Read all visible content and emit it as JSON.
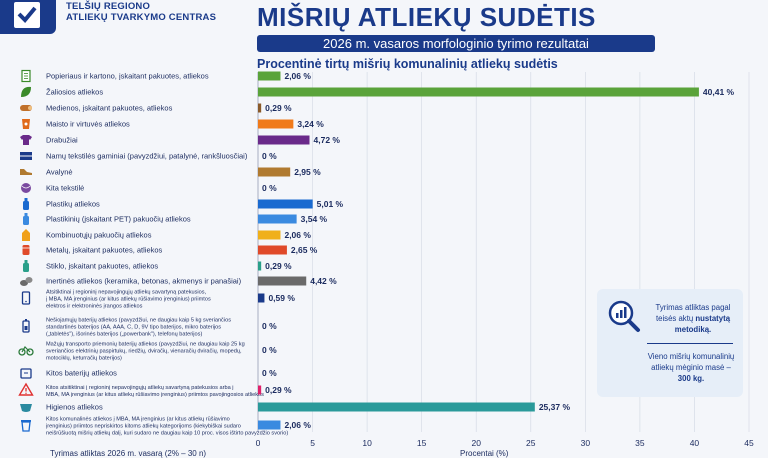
{
  "header": {
    "org_line1": "TELŠIŲ REGIONO",
    "org_line2": "ATLIEKŲ TVARKYMO CENTRAS",
    "title": "MIŠRIŲ ATLIEKŲ SUDĖTIS",
    "subtitle": "2026 m. vasaros morfologinio tyrimo rezultatai"
  },
  "info_box": {
    "text1_a": "Tyrimas atliktas pagal",
    "text1_b": "teisės aktų",
    "text1_c": "nustatytą",
    "text1_d": "metodiką.",
    "text2_a": "Vieno mišrių komunalinių",
    "text2_b": "atliekų mėginio masė –",
    "text2_c": "300 kg."
  },
  "footer": {
    "left": "Tyrimas atliktas 2026 m. vasarą (2% – 30 n)",
    "xlabel": "Procentai (%)"
  },
  "chart_data": {
    "type": "bar",
    "orientation": "horizontal",
    "title": "Procentinė tirtų mišrių komunalinių atliekų sudėtis",
    "xlim": [
      0,
      45
    ],
    "xticks": [
      0,
      5,
      10,
      15,
      20,
      25,
      30,
      35,
      40,
      45
    ],
    "categories": [
      {
        "label": [
          "Popieriaus ir kartono, įskaitant pakuotes, atliekos"
        ],
        "value": 2.06,
        "value_label": "2,06 %",
        "color": "#5aa33a",
        "icon": "paper-icon",
        "icon_color": "#3a8a2a"
      },
      {
        "label": [
          "Žaliosios atliekos"
        ],
        "value": 40.41,
        "value_label": "40,41 %",
        "color": "#5aa33a",
        "icon": "leaf-icon",
        "icon_color": "#3a8a2a"
      },
      {
        "label": [
          "Medienos, įskaitant pakuotes, atliekos"
        ],
        "value": 0.29,
        "value_label": "0,29 %",
        "color": "#8a5a2a",
        "icon": "wood-icon",
        "icon_color": "#c0702a"
      },
      {
        "label": [
          "Maisto ir virtuvės atliekos"
        ],
        "value": 3.24,
        "value_label": "3,24 %",
        "color": "#f07a1a",
        "icon": "food-icon",
        "icon_color": "#e06a1a"
      },
      {
        "label": [
          "Drabužiai"
        ],
        "value": 4.72,
        "value_label": "4,72 %",
        "color": "#6a2a8a",
        "icon": "shirt-icon",
        "icon_color": "#6a2a8a"
      },
      {
        "label": [
          "Namų tekstilės gaminiai (pavyzdžiui, patalynė, rankšluosčiai)"
        ],
        "value": 0,
        "value_label": "0 %",
        "color": "#6a2a8a",
        "icon": "towel-icon",
        "icon_color": "#1a3a8a"
      },
      {
        "label": [
          "Avalynė"
        ],
        "value": 2.95,
        "value_label": "2,95 %",
        "color": "#b07a30",
        "icon": "shoe-icon",
        "icon_color": "#b07a30"
      },
      {
        "label": [
          "Kita tekstilė"
        ],
        "value": 0,
        "value_label": "0 %",
        "color": "#b07a30",
        "icon": "yarn-icon",
        "icon_color": "#7a4aa0"
      },
      {
        "label": [
          "Plastikų atliekos"
        ],
        "value": 5.01,
        "value_label": "5,01 %",
        "color": "#1a6ad0",
        "icon": "bottle-icon",
        "icon_color": "#1a6ad0"
      },
      {
        "label": [
          "Plastikinių (įskaitant PET) pakuočių atliekos"
        ],
        "value": 3.54,
        "value_label": "3,54 %",
        "color": "#3a8ae0",
        "icon": "pet-bottle-icon",
        "icon_color": "#3a8ae0"
      },
      {
        "label": [
          "Kombinuotųjų pakuočių atliekos"
        ],
        "value": 2.06,
        "value_label": "2,06 %",
        "color": "#f0b01a",
        "icon": "carton-icon",
        "icon_color": "#f0a01a"
      },
      {
        "label": [
          "Metalų, įskaitant pakuotes, atliekos"
        ],
        "value": 2.65,
        "value_label": "2,65 %",
        "color": "#e04a2a",
        "icon": "can-icon",
        "icon_color": "#e04a2a"
      },
      {
        "label": [
          "Stiklo, įskaitant pakuotes, atliekos"
        ],
        "value": 0.29,
        "value_label": "0,29 %",
        "color": "#2aa08a",
        "icon": "glass-bottle-icon",
        "icon_color": "#2aa08a"
      },
      {
        "label": [
          "Inertinės atliekos (keramika, betonas, akmenys ir panašiai)"
        ],
        "value": 4.42,
        "value_label": "4,42 %",
        "color": "#6a6a6a",
        "icon": "stones-icon",
        "icon_color": "#6a6a6a"
      },
      {
        "label": [
          "Atsitiktinai į regioninį nepavojingųjų atliekų savartyną patekusios,",
          "į MBA, MA įrenginius (ar kitus atliekų rūšiavimo įrenginius) priimtos",
          "elektros ir elektroninės įrangos atliekos"
        ],
        "value": 0.59,
        "value_label": "0,59 %",
        "color": "#1a3a8a",
        "icon": "electronics-icon",
        "icon_color": "#1a3a8a"
      },
      {
        "label": [
          "Nešiojamųjų baterijų atliekos (pavyzdžiui, ne daugiau kaip 5 kg sveriančios",
          "standartinės baterijos (AA, AAA, C, D, 9V tipo baterijos, mikro baterijos",
          "(„tabletės\"), išorinės baterijos („powerbank\"), telefonų baterijos)"
        ],
        "value": 0,
        "value_label": "0 %",
        "color": "#1a3a8a",
        "icon": "battery-icon",
        "icon_color": "#1a3a8a"
      },
      {
        "label": [
          "Mažųjų transporto priemonių baterijų atliekos (pavyzdžiui, ne daugiau kaip 25 kg",
          "sveriančios elektrinių paspirtukų, riedžių, dviračių, vienaračių dviračių, mopedų,",
          "motociklų, keturračių baterijos)"
        ],
        "value": 0,
        "value_label": "0 %",
        "color": "#1a3a8a",
        "icon": "bicycle-icon",
        "icon_color": "#2a7a3a"
      },
      {
        "label": [
          "Kitos baterijų atliekos"
        ],
        "value": 0,
        "value_label": "0 %",
        "color": "#1a3a8a",
        "icon": "battery-pack-icon",
        "icon_color": "#1a3a8a"
      },
      {
        "label": [
          "Kitos atsitiktinai į regioninį nepavojingųjų atliekų savartyną patekusios arba į",
          "MBA, MA įrenginius (ar kitus atliekų rūšiavimo įrenginius) priimtos pavojingosios atliekos"
        ],
        "value": 0.29,
        "value_label": "0,29 %",
        "color": "#e0206a",
        "icon": "hazard-icon",
        "icon_color": "#e03030"
      },
      {
        "label": [
          "Higienos atliekos"
        ],
        "value": 25.37,
        "value_label": "25,37 %",
        "color": "#2a9a9a",
        "icon": "diaper-icon",
        "icon_color": "#2a8aa0"
      },
      {
        "label": [
          "Kitos komunalinės atliekos į MBA, MA įrenginius (ar kitus atliekų rūšiavimo",
          "įrenginius) priimtos nepriskirtos kitoms atliekų kategorijoms (kiekybiškai sudaro",
          "neišrūšiuotą mišrių atliekų dalį, kuri sudaro ne daugiau kaip 10 proc. visos ištirto pavyzdžio svorio)"
        ],
        "value": 2.06,
        "value_label": "2,06 %",
        "color": "#3a8ae0",
        "icon": "trash-icon",
        "icon_color": "#1a6ad0"
      }
    ]
  }
}
